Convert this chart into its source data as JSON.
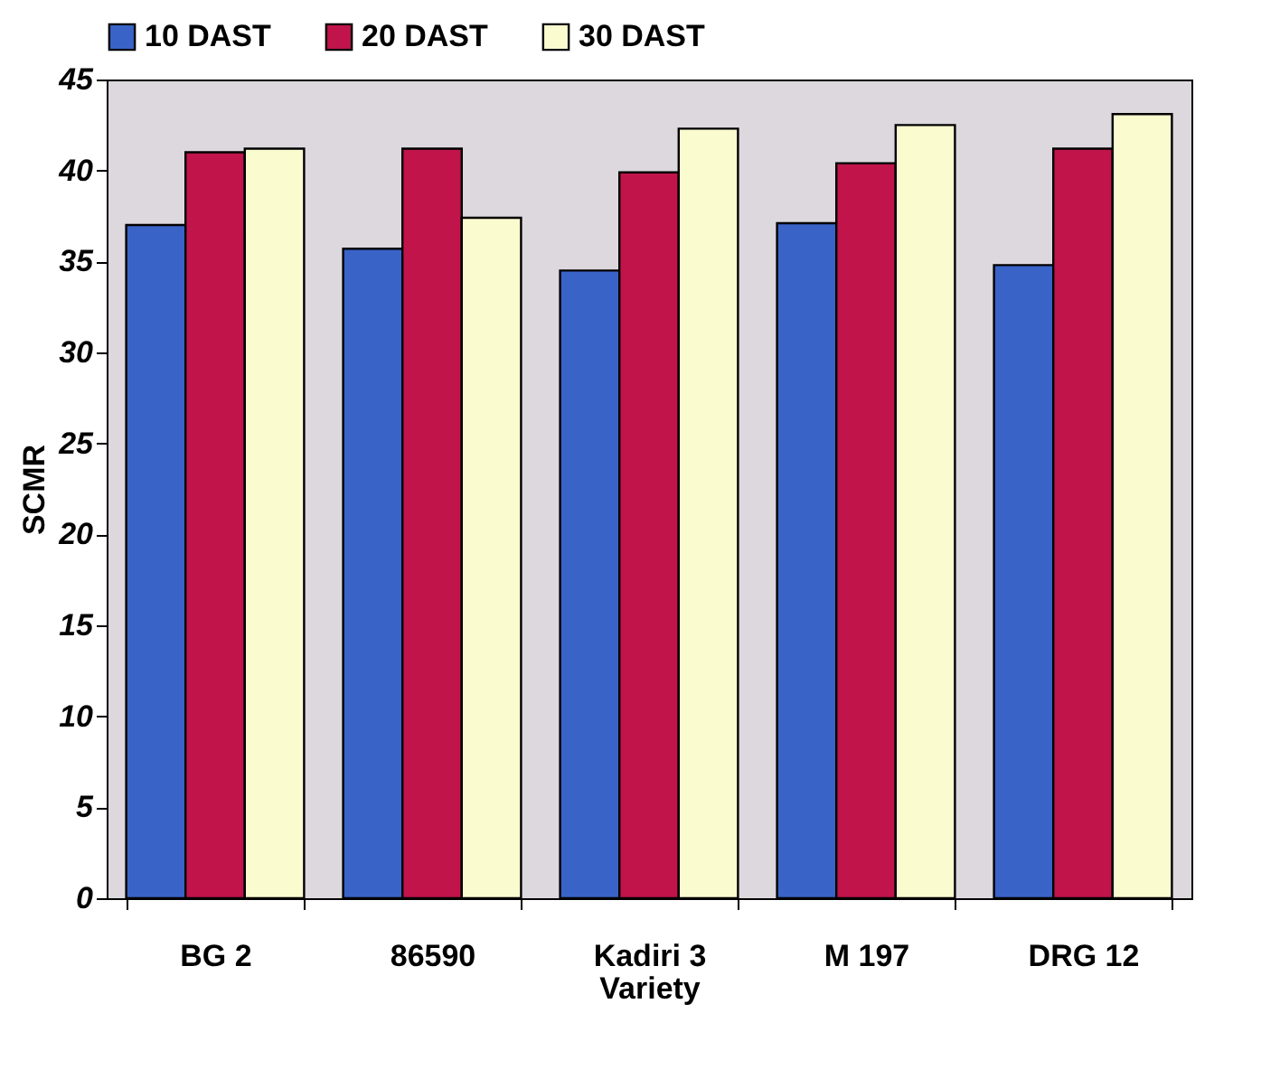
{
  "chart_data": {
    "type": "bar",
    "xlabel": "Variety",
    "ylabel": "SCMR",
    "categories": [
      "BG 2",
      "86590",
      "Kadiri 3",
      "M 197",
      "DRG 12"
    ],
    "series": [
      {
        "name": "10 DAST",
        "color": "#3a63c8",
        "values": [
          37,
          35.7,
          34.5,
          37.1,
          34.8
        ]
      },
      {
        "name": "20 DAST",
        "color": "#c0144a",
        "values": [
          41,
          41.2,
          39.9,
          40.4,
          41.2
        ]
      },
      {
        "name": "30 DAST",
        "color": "#fbfbd0",
        "values": [
          41.2,
          37.4,
          42.3,
          42.5,
          43.1
        ]
      }
    ],
    "ylim": [
      0,
      45
    ],
    "yticks": [
      0,
      5,
      10,
      15,
      20,
      25,
      30,
      35,
      40,
      45
    ],
    "grid": false,
    "legend": "top"
  }
}
